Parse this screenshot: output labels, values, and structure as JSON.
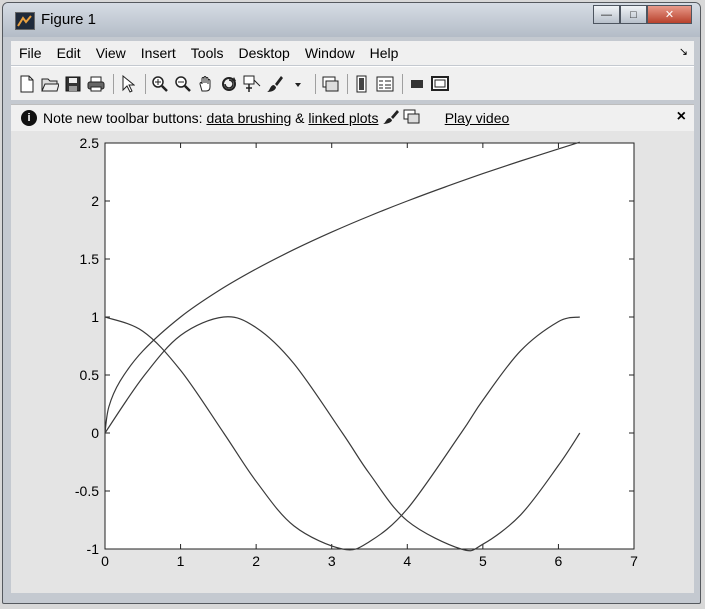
{
  "window": {
    "title": "Figure 1"
  },
  "window_controls": {
    "minimize": "—",
    "maximize": "□",
    "close": "✕"
  },
  "menu": {
    "items": [
      "File",
      "Edit",
      "View",
      "Insert",
      "Tools",
      "Desktop",
      "Window",
      "Help"
    ],
    "dock_glyph": "↘"
  },
  "toolbar": {
    "buttons": [
      "new-figure",
      "open-file",
      "save",
      "print",
      "edit-plot",
      "zoom-in",
      "zoom-out",
      "pan",
      "rotate-3d",
      "data-cursor",
      "brush",
      "link-plot",
      "hide-plot-tools",
      "insert-colorbar",
      "insert-legend",
      "show-plot-tools"
    ]
  },
  "notification": {
    "info_glyph": "i",
    "prefix": "Note new toolbar buttons:",
    "link1": "data brushing",
    "amp": "&",
    "link2": "linked plots",
    "video_link": "Play video",
    "close": "×"
  },
  "chart_data": {
    "type": "line",
    "title": "",
    "xlabel": "",
    "ylabel": "",
    "xlim": [
      0,
      7
    ],
    "ylim": [
      -1,
      2.5
    ],
    "xticks": [
      0,
      1,
      2,
      3,
      4,
      5,
      6,
      7
    ],
    "yticks": [
      -1,
      -0.5,
      0,
      0.5,
      1,
      1.5,
      2,
      2.5
    ],
    "ytick_labels": [
      "-1",
      "-0.5",
      "0",
      "0.5",
      "1",
      "1.5",
      "2",
      "2.5"
    ],
    "grid": false,
    "series": [
      {
        "function": "sin(x)",
        "x": [
          0,
          0.5,
          1.0,
          1.5707,
          2.0,
          2.5,
          3.1416,
          3.5,
          4.0,
          4.7124,
          5.0,
          5.5,
          6.0,
          6.2832
        ],
        "y": [
          0,
          0.479,
          0.841,
          1.0,
          0.909,
          0.598,
          0.0,
          -0.351,
          -0.757,
          -1.0,
          -0.959,
          -0.706,
          -0.279,
          0.0
        ]
      },
      {
        "function": "cos(x)",
        "x": [
          0,
          0.5,
          1.0,
          1.5707,
          2.0,
          2.5,
          3.1416,
          3.5,
          4.0,
          4.7124,
          5.0,
          5.5,
          6.0,
          6.2832
        ],
        "y": [
          1.0,
          0.878,
          0.54,
          0.0,
          -0.416,
          -0.801,
          -1.0,
          -0.936,
          -0.654,
          0.0,
          0.284,
          0.709,
          0.96,
          1.0
        ]
      },
      {
        "function": "sqrt(x)",
        "x": [
          0,
          0.05,
          0.2,
          0.5,
          1.0,
          1.5,
          2.0,
          2.5,
          3.0,
          3.5,
          4.0,
          4.5,
          5.0,
          5.5,
          6.0,
          6.2832
        ],
        "y": [
          0,
          0.224,
          0.447,
          0.707,
          1.0,
          1.225,
          1.414,
          1.581,
          1.732,
          1.871,
          2.0,
          2.121,
          2.236,
          2.345,
          2.449,
          2.507
        ]
      }
    ]
  }
}
